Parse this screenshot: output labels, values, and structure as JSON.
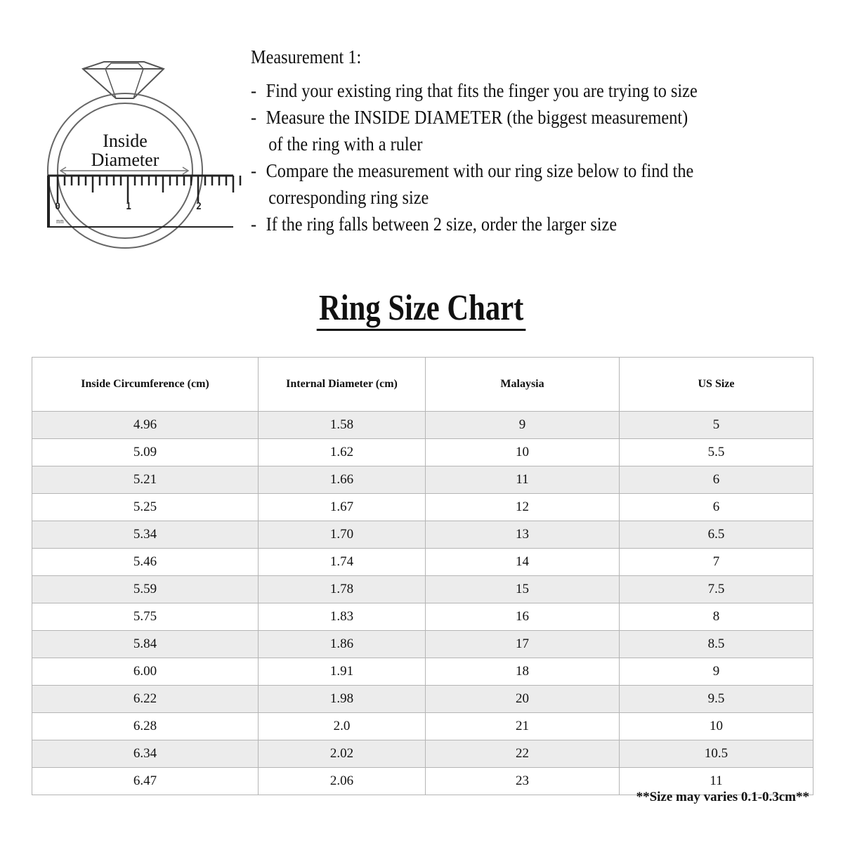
{
  "illustration": {
    "label_line1": "Inside",
    "label_line2": "Diameter",
    "ruler_ticks": [
      "0",
      "1",
      "2"
    ],
    "ruler_unit": "mm"
  },
  "instructions": {
    "heading": "Measurement 1:",
    "items": [
      {
        "line1": "Find your existing ring that fits the finger you are trying to size",
        "line2": ""
      },
      {
        "line1": "Measure the INSIDE DIAMETER (the biggest measurement)",
        "line2": "of the ring with a ruler"
      },
      {
        "line1": "Compare the measurement with our ring size below to find the",
        "line2": "corresponding ring size"
      },
      {
        "line1": "If the ring falls between 2 size, order the larger size",
        "line2": ""
      }
    ]
  },
  "title": "Ring Size Chart",
  "table": {
    "headers": [
      "Inside Circumference (cm)",
      "Internal Diameter (cm)",
      "Malaysia",
      "US Size"
    ],
    "rows": [
      [
        "4.96",
        "1.58",
        "9",
        "5"
      ],
      [
        "5.09",
        "1.62",
        "10",
        "5.5"
      ],
      [
        "5.21",
        "1.66",
        "11",
        "6"
      ],
      [
        "5.25",
        "1.67",
        "12",
        "6"
      ],
      [
        "5.34",
        "1.70",
        "13",
        "6.5"
      ],
      [
        "5.46",
        "1.74",
        "14",
        "7"
      ],
      [
        "5.59",
        "1.78",
        "15",
        "7.5"
      ],
      [
        "5.75",
        "1.83",
        "16",
        "8"
      ],
      [
        "5.84",
        "1.86",
        "17",
        "8.5"
      ],
      [
        "6.00",
        "1.91",
        "18",
        "9"
      ],
      [
        "6.22",
        "1.98",
        "20",
        "9.5"
      ],
      [
        "6.28",
        "2.0",
        "21",
        "10"
      ],
      [
        "6.34",
        "2.02",
        "22",
        "10.5"
      ],
      [
        "6.47",
        "2.06",
        "23",
        "11"
      ]
    ]
  },
  "note": "**Size may varies 0.1-0.3cm**",
  "colors": {
    "row_shade": "#ececec",
    "border": "#b5b5b5",
    "text": "#111111"
  }
}
